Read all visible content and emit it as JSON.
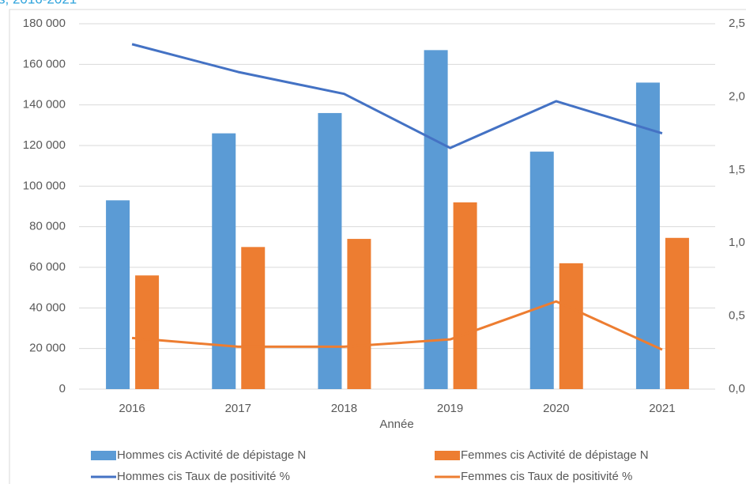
{
  "chart_data": {
    "type": "bar_line",
    "title": "s, 2016-2021",
    "x_label": "Année",
    "categories": [
      "2016",
      "2017",
      "2018",
      "2019",
      "2020",
      "2021"
    ],
    "series": [
      {
        "name": "Hommes cis Activité de dépistage  N",
        "type": "bar",
        "color": "#5b9bd5",
        "values": [
          93000,
          126000,
          136000,
          167000,
          117000,
          151000
        ]
      },
      {
        "name": "Femmes cis Activité de dépistage  N",
        "type": "bar",
        "color": "#ed7d31",
        "values": [
          56000,
          70000,
          74000,
          92000,
          62000,
          74500
        ]
      },
      {
        "name": "Hommes cis Taux de positivité %",
        "type": "line",
        "axis": "y2",
        "color": "#4472c4",
        "values": [
          2.36,
          2.17,
          2.02,
          1.65,
          1.97,
          1.75
        ]
      },
      {
        "name": "Femmes cis Taux de positivité %",
        "type": "line",
        "axis": "y2",
        "color": "#ed7d31",
        "values": [
          0.35,
          0.29,
          0.29,
          0.34,
          0.6,
          0.27
        ]
      }
    ],
    "ylim": [
      0,
      180000
    ],
    "yticks": [
      0,
      {
        "value": 20000,
        "label": "20 000"
      },
      {
        "value": 40000,
        "label": "40 000"
      },
      {
        "value": 60000,
        "label": "60 000"
      },
      {
        "value": 80000,
        "label": "80 000"
      },
      {
        "value": 100000,
        "label": "100 000"
      },
      {
        "value": 120000,
        "label": "120 000"
      },
      {
        "value": 140000,
        "label": "140 000"
      },
      {
        "value": 160000,
        "label": "160 000"
      },
      {
        "value": 180000,
        "label": "180 000"
      }
    ],
    "y2lim": [
      0,
      2.5
    ],
    "y2ticks": [
      {
        "value": 0,
        "label": "0,0"
      },
      {
        "value": 0.5,
        "label": "0,5"
      },
      {
        "value": 1,
        "label": "1,0"
      },
      {
        "value": 1.5,
        "label": "1,5"
      },
      {
        "value": 2,
        "label": "2,0"
      },
      {
        "value": 2.5,
        "label": "2,5"
      }
    ],
    "grid": true
  }
}
